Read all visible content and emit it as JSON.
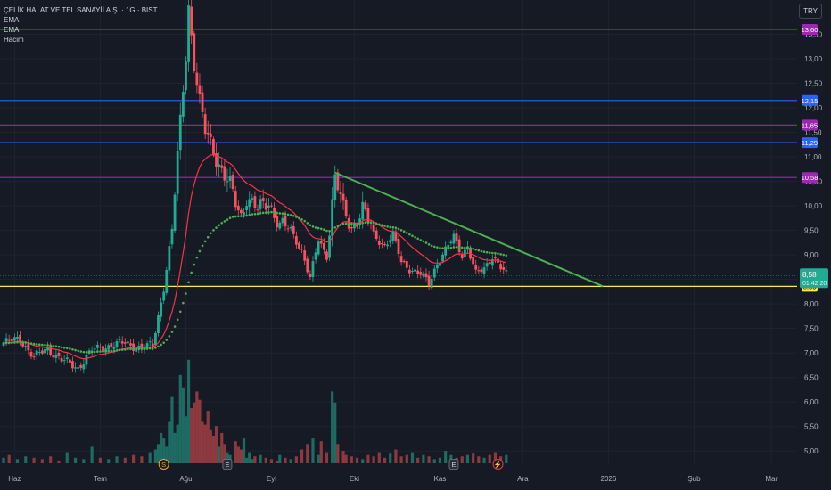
{
  "header": {
    "symbol_title": "ÇELİK HALAT VE TEL SANAYİİ A.Ş. · 1G · BIST",
    "indicators": [
      "EMA",
      "EMA",
      "Hacim"
    ],
    "currency_button": "TRY"
  },
  "chart_data": {
    "type": "candlestick",
    "title": "ÇELİK HALAT VE TEL SANAYİİ A.Ş. · 1G · BIST",
    "currency": "TRY",
    "ylim": [
      4.75,
      14.2
    ],
    "y_ticks": [
      "5,00",
      "5,50",
      "6,00",
      "6,50",
      "7,00",
      "7,50",
      "8,00",
      "8,50",
      "9,00",
      "9,50",
      "10,00",
      "10,50",
      "11,00",
      "11,50",
      "12,00",
      "12,50",
      "13,00",
      "13,50"
    ],
    "y_tick_values": [
      5.0,
      5.5,
      6.0,
      6.5,
      7.0,
      7.5,
      8.0,
      8.5,
      9.0,
      9.5,
      10.0,
      10.5,
      11.0,
      11.5,
      12.0,
      12.5,
      13.0,
      13.5
    ],
    "x_ticks": [
      "Haz",
      "Tem",
      "Ağu",
      "Eyl",
      "Eki",
      "Kas",
      "Ara",
      "2026",
      "Şub",
      "Mar"
    ],
    "x_tick_days": [
      4,
      35,
      66,
      97,
      127,
      158,
      188,
      219,
      250,
      278
    ],
    "total_days": 286,
    "colors": {
      "up": "#22ab94",
      "down": "#f7525f",
      "vol_up": "#1d6b63",
      "vol_down": "#8c3a3e",
      "ema_fast": "#f23645",
      "ema_slow": "#4caf50",
      "trendline": "#4caf50",
      "support": "#ffeb3b"
    },
    "horizontal_levels": [
      {
        "value": 13.6,
        "label": "13,60",
        "color": "#9c27b0"
      },
      {
        "value": 12.15,
        "label": "12,15",
        "color": "#2962ff"
      },
      {
        "value": 11.65,
        "label": "11,65",
        "color": "#9c27b0"
      },
      {
        "value": 11.29,
        "label": "11,29",
        "color": "#2962ff"
      },
      {
        "value": 10.58,
        "label": "10,58",
        "color": "#9c27b0"
      },
      {
        "value": 8.36,
        "label": "8,36",
        "color": "#ffeb3b"
      }
    ],
    "current_price": {
      "value": 8.58,
      "label": "8,58",
      "countdown": "01:42:20",
      "color": "#22ab94"
    },
    "trendline": {
      "from": [
        120,
        10.68
      ],
      "to": [
        217,
        8.36
      ]
    },
    "anchors": [
      [
        0,
        7.2
      ],
      [
        6,
        7.3
      ],
      [
        11,
        6.9
      ],
      [
        16,
        7.1
      ],
      [
        21,
        6.85
      ],
      [
        27,
        6.7
      ],
      [
        32,
        7.05
      ],
      [
        38,
        7.15
      ],
      [
        44,
        7.2
      ],
      [
        50,
        7.1
      ],
      [
        54,
        7.15
      ],
      [
        58,
        8.35
      ],
      [
        61,
        9.5
      ],
      [
        63,
        11.0
      ],
      [
        65,
        12.4
      ],
      [
        66,
        13.1
      ],
      [
        67,
        14.1
      ],
      [
        69,
        12.9
      ],
      [
        71,
        12.1
      ],
      [
        73,
        11.5
      ],
      [
        75,
        11.3
      ],
      [
        77,
        11.0
      ],
      [
        80,
        10.6
      ],
      [
        82,
        10.4
      ],
      [
        84,
        10.05
      ],
      [
        86,
        9.8
      ],
      [
        88,
        10.2
      ],
      [
        92,
        9.9
      ],
      [
        96,
        10.1
      ],
      [
        100,
        9.6
      ],
      [
        104,
        9.5
      ],
      [
        108,
        9.1
      ],
      [
        111,
        8.5
      ],
      [
        114,
        9.3
      ],
      [
        117,
        9.0
      ],
      [
        120,
        10.6
      ],
      [
        123,
        9.9
      ],
      [
        126,
        9.55
      ],
      [
        130,
        9.95
      ],
      [
        134,
        9.4
      ],
      [
        138,
        9.2
      ],
      [
        141,
        9.4
      ],
      [
        144,
        8.85
      ],
      [
        148,
        8.7
      ],
      [
        151,
        8.6
      ],
      [
        154,
        8.4
      ],
      [
        157,
        8.85
      ],
      [
        160,
        9.1
      ],
      [
        163,
        9.35
      ],
      [
        166,
        9.0
      ],
      [
        168,
        9.2
      ],
      [
        171,
        8.6
      ],
      [
        174,
        8.7
      ],
      [
        177,
        9.0
      ],
      [
        180,
        8.75
      ],
      [
        182,
        8.58
      ]
    ],
    "volume": [
      [
        0,
        4
      ],
      [
        2,
        6
      ],
      [
        5,
        3
      ],
      [
        8,
        5
      ],
      [
        11,
        4
      ],
      [
        14,
        3
      ],
      [
        17,
        5
      ],
      [
        20,
        2
      ],
      [
        23,
        8
      ],
      [
        26,
        4
      ],
      [
        29,
        3
      ],
      [
        32,
        12
      ],
      [
        35,
        4
      ],
      [
        38,
        3
      ],
      [
        41,
        5
      ],
      [
        44,
        4
      ],
      [
        47,
        6
      ],
      [
        50,
        5
      ],
      [
        53,
        8
      ],
      [
        55,
        10
      ],
      [
        56,
        14
      ],
      [
        57,
        22
      ],
      [
        58,
        18
      ],
      [
        59,
        12
      ],
      [
        60,
        30
      ],
      [
        61,
        48
      ],
      [
        62,
        22
      ],
      [
        63,
        28
      ],
      [
        64,
        64
      ],
      [
        65,
        55
      ],
      [
        66,
        34
      ],
      [
        67,
        75
      ],
      [
        68,
        40
      ],
      [
        69,
        44
      ],
      [
        70,
        52
      ],
      [
        71,
        46
      ],
      [
        72,
        30
      ],
      [
        73,
        28
      ],
      [
        74,
        38
      ],
      [
        75,
        24
      ],
      [
        76,
        20
      ],
      [
        77,
        27
      ],
      [
        78,
        12
      ],
      [
        79,
        22
      ],
      [
        80,
        14
      ],
      [
        81,
        8
      ],
      [
        82,
        6
      ],
      [
        84,
        16
      ],
      [
        85,
        12
      ],
      [
        86,
        10
      ],
      [
        87,
        18
      ],
      [
        88,
        4
      ],
      [
        89,
        8
      ],
      [
        90,
        3
      ],
      [
        91,
        5
      ],
      [
        93,
        6
      ],
      [
        95,
        4
      ],
      [
        97,
        3
      ],
      [
        99,
        2
      ],
      [
        100,
        6
      ],
      [
        102,
        4
      ],
      [
        104,
        3
      ],
      [
        106,
        5
      ],
      [
        108,
        10
      ],
      [
        110,
        14
      ],
      [
        112,
        18
      ],
      [
        114,
        6
      ],
      [
        115,
        16
      ],
      [
        117,
        8
      ],
      [
        119,
        52
      ],
      [
        120,
        44
      ],
      [
        121,
        14
      ],
      [
        123,
        9
      ],
      [
        124,
        6
      ],
      [
        126,
        5
      ],
      [
        128,
        4
      ],
      [
        130,
        3
      ],
      [
        132,
        6
      ],
      [
        134,
        5
      ],
      [
        136,
        8
      ],
      [
        138,
        4
      ],
      [
        140,
        7
      ],
      [
        142,
        10
      ],
      [
        144,
        5
      ],
      [
        146,
        6
      ],
      [
        148,
        8
      ],
      [
        150,
        4
      ],
      [
        152,
        6
      ],
      [
        154,
        5
      ],
      [
        156,
        3
      ],
      [
        158,
        4
      ],
      [
        160,
        9
      ],
      [
        162,
        6
      ],
      [
        164,
        4
      ],
      [
        166,
        5
      ],
      [
        168,
        6
      ],
      [
        170,
        7
      ],
      [
        172,
        5
      ],
      [
        174,
        4
      ],
      [
        176,
        6
      ],
      [
        178,
        8
      ],
      [
        180,
        5
      ],
      [
        182,
        6
      ]
    ],
    "event_markers": [
      {
        "day": 58,
        "letter": "S",
        "type": "dividend"
      },
      {
        "day": 81,
        "letter": "E",
        "type": "earnings"
      },
      {
        "day": 163,
        "letter": "E",
        "type": "earnings"
      },
      {
        "day": 179,
        "letter": "⚡",
        "type": "news"
      }
    ]
  }
}
